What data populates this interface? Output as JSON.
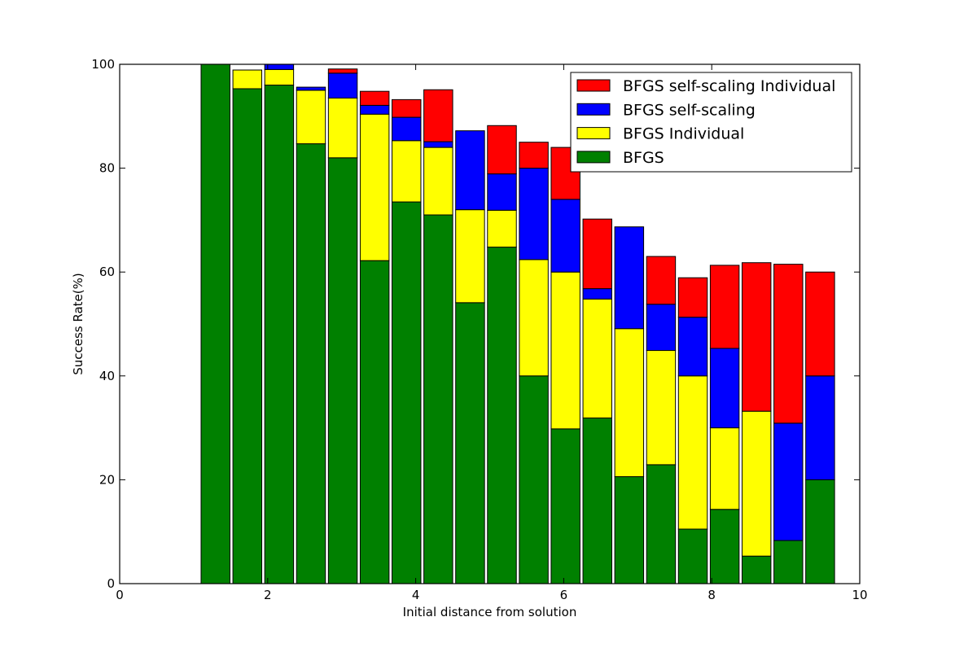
{
  "chart_data": {
    "type": "bar",
    "stacked": true,
    "xlabel": "Initial distance from solution",
    "ylabel": "Success Rate(%)",
    "xlim": [
      0,
      10
    ],
    "ylim": [
      0,
      100
    ],
    "xticks": [
      0,
      2,
      4,
      6,
      8,
      10
    ],
    "yticks": [
      0,
      20,
      40,
      60,
      80,
      100
    ],
    "grid": false,
    "legend_position": "top-right",
    "bar_width": 0.39,
    "x": [
      1.1,
      1.53,
      1.96,
      2.39,
      2.82,
      3.25,
      3.68,
      4.11,
      4.54,
      4.97,
      5.4,
      5.83,
      6.26,
      6.69,
      7.12,
      7.55,
      7.98,
      8.41,
      8.84,
      9.27
    ],
    "series": [
      {
        "name": "BFGS",
        "color": "#008000",
        "values": [
          100,
          95.3,
          96.0,
          84.7,
          82.0,
          62.2,
          73.5,
          71.0,
          54.1,
          64.8,
          40.0,
          29.8,
          31.9,
          20.6,
          22.9,
          10.5,
          14.3,
          5.3,
          8.3,
          20.0
        ]
      },
      {
        "name": "BFGS Individual",
        "color": "#ffff00",
        "values": [
          0,
          3.6,
          3.0,
          10.3,
          11.5,
          28.2,
          11.8,
          13.0,
          17.9,
          7.1,
          22.4,
          30.2,
          22.9,
          28.5,
          22.0,
          29.5,
          15.7,
          27.9,
          0,
          0
        ]
      },
      {
        "name": "BFGS self-scaling",
        "color": "#0000ff",
        "values": [
          0,
          0,
          1.0,
          0.6,
          4.8,
          1.7,
          4.5,
          1.1,
          15.2,
          7.0,
          17.6,
          14.0,
          2.0,
          19.6,
          8.9,
          11.3,
          15.3,
          0,
          22.6,
          20.0
        ]
      },
      {
        "name": "BFGS self-scaling Individual",
        "color": "#ff0000",
        "values": [
          0,
          0,
          0,
          0,
          0.8,
          2.7,
          3.4,
          10.0,
          0,
          9.3,
          5.0,
          10.0,
          13.4,
          0,
          9.2,
          7.6,
          16.0,
          28.6,
          30.6,
          20.0
        ]
      }
    ]
  }
}
